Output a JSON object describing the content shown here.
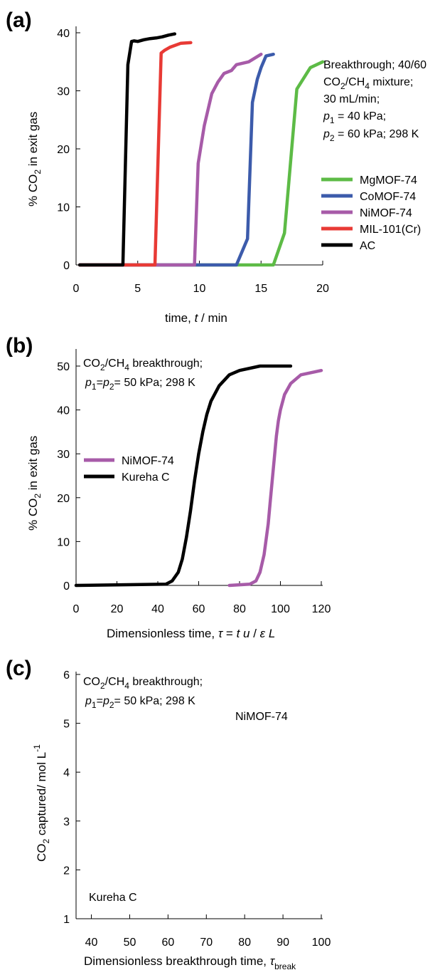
{
  "chart_data": [
    {
      "panel_label": "(a)",
      "type": "line",
      "xlabel": "time,  t / min",
      "ylabel": "% CO2 in exit gas",
      "xlim": [
        0,
        20
      ],
      "ylim": [
        0,
        40
      ],
      "xticks": [
        0,
        5,
        10,
        15,
        20
      ],
      "yticks": [
        0,
        10,
        20,
        30,
        40
      ],
      "grid": false,
      "legend_position": "right",
      "annotation": [
        "Breakthrough; 40/60",
        "CO2/CH4 mixture;",
        "30 mL/min;",
        "p1 = 40 kPa;",
        "p2 = 60 kPa;  298 K"
      ],
      "series": [
        {
          "name": "MgMOF-74",
          "color": "#5dbb46",
          "x": [
            0.3,
            14.0,
            16.0,
            16.9,
            17.9,
            19.0,
            20.0
          ],
          "y": [
            0,
            0,
            0,
            5.5,
            30.3,
            34.0,
            35.0
          ]
        },
        {
          "name": "CoMOF-74",
          "color": "#3c5bab",
          "x": [
            0.3,
            13.0,
            13.9,
            14.3,
            14.7,
            15.0,
            15.4,
            16.0
          ],
          "y": [
            0,
            0,
            4.5,
            28.0,
            32.0,
            34.0,
            36.0,
            36.3
          ]
        },
        {
          "name": "NiMOF-74",
          "color": "#a75ba8",
          "x": [
            0.3,
            9.6,
            9.9,
            10.4,
            11.0,
            11.5,
            12.0,
            12.6,
            13.0,
            14.0,
            15.0
          ],
          "y": [
            0,
            0,
            17.5,
            24.0,
            29.5,
            31.5,
            33.0,
            33.5,
            34.5,
            35.0,
            36.3
          ]
        },
        {
          "name": "MIL-101(Cr)",
          "color": "#e83a35",
          "x": [
            0.3,
            6.4,
            6.9,
            7.2,
            7.6,
            8.0,
            8.5,
            9.3
          ],
          "y": [
            0,
            0,
            36.5,
            37.0,
            37.5,
            37.8,
            38.2,
            38.3
          ]
        },
        {
          "name": "AC",
          "color": "#000000",
          "x": [
            0.3,
            3.8,
            4.2,
            4.5,
            4.7,
            5.0,
            5.5,
            6.0,
            6.5,
            7.0,
            7.5,
            8.0
          ],
          "y": [
            0,
            0,
            34.5,
            38.5,
            38.6,
            38.5,
            38.8,
            39.0,
            39.1,
            39.3,
            39.6,
            39.8
          ]
        }
      ]
    },
    {
      "panel_label": "(b)",
      "type": "line",
      "xlabel": "Dimensionless time,  τ = t u / ε L",
      "ylabel": "% CO2 in exit gas",
      "xlim": [
        0,
        120
      ],
      "ylim": [
        0,
        50
      ],
      "xticks": [
        0,
        20,
        40,
        60,
        80,
        100,
        120
      ],
      "yticks": [
        0,
        10,
        20,
        30,
        40,
        50
      ],
      "grid": false,
      "legend_position": "left",
      "annotation": [
        "CO2/CH4 breakthrough;",
        "p1=p2= 50  kPa; 298 K"
      ],
      "series": [
        {
          "name": "NiMOF-74",
          "color": "#a75ba8",
          "x": [
            75,
            85,
            88,
            90,
            92,
            94,
            95,
            96,
            97,
            98,
            99,
            100,
            102,
            105,
            110,
            120
          ],
          "y": [
            0,
            0.3,
            1,
            3,
            7,
            14,
            19,
            24,
            29,
            34,
            37.5,
            40,
            43.5,
            46,
            48,
            49
          ]
        },
        {
          "name": "Kureha C",
          "color": "#000000",
          "x": [
            0,
            44,
            47,
            50,
            52,
            54,
            56,
            58,
            60,
            62,
            64,
            66,
            70,
            75,
            80,
            90,
            100,
            105
          ],
          "y": [
            0,
            0.3,
            1,
            3,
            6,
            11,
            17,
            24,
            30,
            35,
            39,
            42,
            45.5,
            48,
            49,
            50,
            50,
            50
          ]
        }
      ]
    },
    {
      "panel_label": "(c)",
      "type": "scatter",
      "xlabel": "Dimensionless breakthrough time, τ",
      "xlabel_subscript": "break",
      "ylabel": "CO2 captured/ mol  L-1",
      "xlim": [
        36,
        100
      ],
      "ylim": [
        1,
        6
      ],
      "xticks": [
        40,
        50,
        60,
        70,
        80,
        90,
        100
      ],
      "yticks": [
        1,
        2,
        3,
        4,
        5,
        6
      ],
      "grid": false,
      "annotation": [
        "CO2/CH4 breakthrough;",
        "p1=p2= 50  kPa; 298 K"
      ],
      "point_labels": [
        "NiMOF-74",
        "Kureha C"
      ]
    }
  ]
}
